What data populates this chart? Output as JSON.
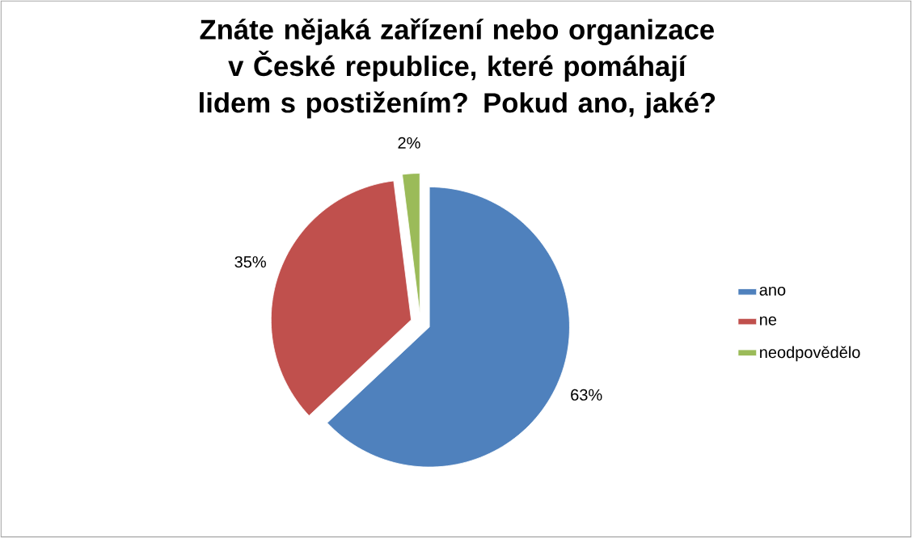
{
  "chart_data": {
    "type": "pie",
    "title": "Znáte nějaká zařízení nebo organizace v České republice, které pomáhají lidem s postižením? Pokud ano, jaké?",
    "categories": [
      "ano",
      "ne",
      "neodpovědělo"
    ],
    "values": [
      63,
      35,
      2
    ],
    "colors": [
      "#4f81bd",
      "#c0504d",
      "#9bbb59"
    ],
    "value_labels": [
      "63%",
      "35%",
      "2%"
    ],
    "legend": "right"
  }
}
